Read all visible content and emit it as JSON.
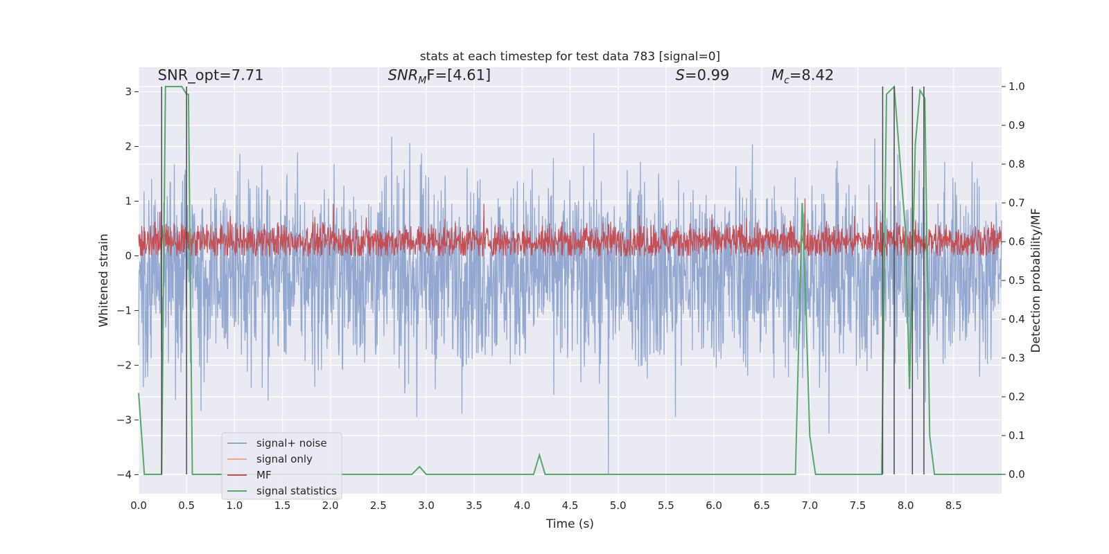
{
  "chart_data": {
    "type": "line",
    "title": "stats at each timestep for test data 783 [signal=0]",
    "xlabel": "Time (s)",
    "ylabel": "Whitened strain",
    "ylabel_right": "Detection probability/MF",
    "xlim": [
      0,
      9.0
    ],
    "ylim": [
      -4.35,
      3.45
    ],
    "ylim_right": [
      -0.05,
      1.05
    ],
    "x_ticks": [
      0.0,
      0.5,
      1.0,
      1.5,
      2.0,
      2.5,
      3.0,
      3.5,
      4.0,
      4.5,
      5.0,
      5.5,
      6.0,
      6.5,
      7.0,
      7.5,
      8.0,
      8.5
    ],
    "x_tick_labels": [
      "0.0",
      "0.5",
      "1.0",
      "1.5",
      "2.0",
      "2.5",
      "3.0",
      "3.5",
      "4.0",
      "4.5",
      "5.0",
      "5.5",
      "6.0",
      "6.5",
      "7.0",
      "7.5",
      "8.0",
      "8.5"
    ],
    "y_ticks": [
      -4,
      -3,
      -2,
      -1,
      0,
      1,
      2,
      3
    ],
    "y_tick_labels": [
      "−4",
      "−3",
      "−2",
      "−1",
      "0",
      "1",
      "2",
      "3"
    ],
    "y_ticks_right": [
      0.0,
      0.1,
      0.2,
      0.3,
      0.4,
      0.5,
      0.6,
      0.7,
      0.8,
      0.9,
      1.0
    ],
    "y_tick_labels_right": [
      "0.0",
      "0.1",
      "0.2",
      "0.3",
      "0.4",
      "0.5",
      "0.6",
      "0.7",
      "0.8",
      "0.9",
      "1.0"
    ],
    "annotations": [
      {
        "text": "SNR_opt=7.71",
        "x": 0.2,
        "y": 3.2
      },
      {
        "text": "SNR_MF=[4.61]",
        "x": 2.6,
        "y": 3.2,
        "main": "SNR",
        "sub": "M",
        "tail": "F=[4.61]",
        "italic_main": true
      },
      {
        "text": "S=0.99",
        "x": 5.6,
        "y": 3.2,
        "main": "S",
        "tail": "=0.99",
        "italic_main": true
      },
      {
        "text": "M_c=8.42",
        "x": 6.6,
        "y": 3.2,
        "main": "M",
        "sub": "c",
        "tail": "=8.42",
        "italic_main": true
      }
    ],
    "noise": {
      "name": "signal+ noise",
      "color": "#92a8d1",
      "center": -0.3,
      "spread": 0.85,
      "extreme_peaks": [
        [
          4.9,
          -4.0
        ],
        [
          2.9,
          -2.95
        ],
        [
          7.2,
          -3.25
        ],
        [
          5.6,
          -2.95
        ],
        [
          1.35,
          -2.65
        ],
        [
          0.05,
          -2.4
        ]
      ]
    },
    "mf": {
      "name": "MF",
      "color": "#c44e52",
      "center": 0.27,
      "spread": 0.16,
      "peaks": [
        [
          2.03,
          0.95
        ],
        [
          3.6,
          0.95
        ],
        [
          6.95,
          1.05
        ],
        [
          7.7,
          0.98
        ],
        [
          0.22,
          0.8
        ]
      ]
    },
    "signal_only": {
      "name": "signal only",
      "color": "#eea58a"
    },
    "statistics": {
      "name": "signal statistics",
      "color": "#55a868",
      "x": [
        0.0,
        0.06,
        0.2,
        0.24,
        0.28,
        0.3,
        0.45,
        0.5,
        0.52,
        0.56,
        0.6,
        1.0,
        2.0,
        2.85,
        2.93,
        3.0,
        3.5,
        4.0,
        4.12,
        4.18,
        4.24,
        4.3,
        5.0,
        6.5,
        6.85,
        6.92,
        6.95,
        7.0,
        7.06,
        7.15,
        7.5,
        7.75,
        7.8,
        7.88,
        8.0,
        8.04,
        8.1,
        8.15,
        8.2,
        8.25,
        8.3,
        8.4,
        9.0
      ],
      "y": [
        0.21,
        0.0,
        0.0,
        0.0,
        1.0,
        1.0,
        1.0,
        0.98,
        0.98,
        0.0,
        0.0,
        0.0,
        0.0,
        0.0,
        0.02,
        0.0,
        0.0,
        0.0,
        0.0,
        0.05,
        0.0,
        0.0,
        0.0,
        0.0,
        0.0,
        0.7,
        0.5,
        0.1,
        0.0,
        0.0,
        0.0,
        0.0,
        0.98,
        1.0,
        0.62,
        0.22,
        0.85,
        0.99,
        0.97,
        0.1,
        0.0,
        0.0,
        0.0
      ]
    },
    "vlines": {
      "color": "#4a4a4a",
      "x": [
        0.24,
        0.5,
        7.76,
        7.88,
        8.07,
        8.19
      ]
    },
    "legend": {
      "placement": "lower-left",
      "entries": [
        {
          "label": "signal+ noise",
          "color": "#92a8d1"
        },
        {
          "label": "signal only",
          "color": "#eea58a"
        },
        {
          "label": "MF",
          "color": "#c44e52"
        },
        {
          "label": "signal statistics",
          "color": "#55a868"
        }
      ]
    },
    "style": {
      "background": "#eaeaf2",
      "grid": "#ffffff"
    }
  }
}
